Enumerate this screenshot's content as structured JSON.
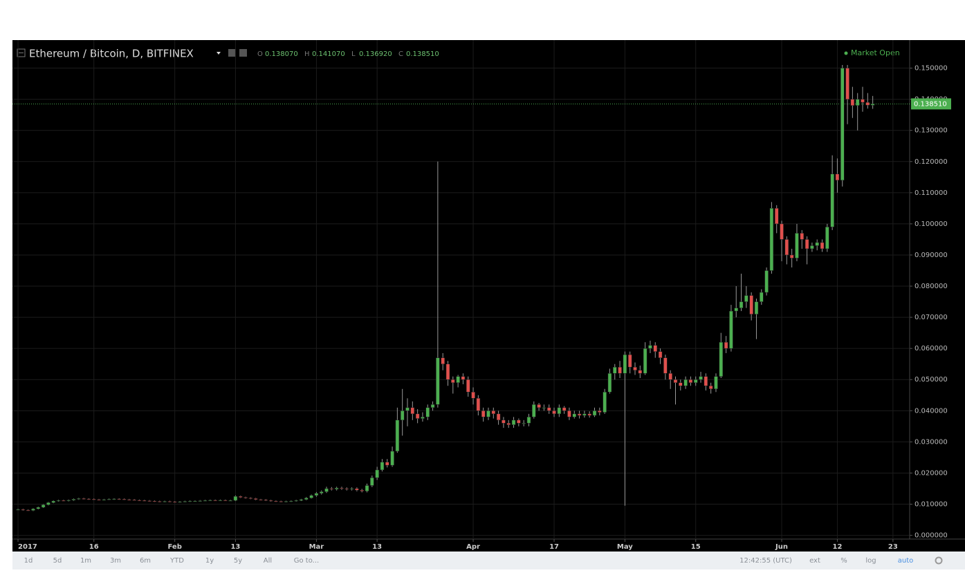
{
  "chart_data": {
    "type": "candlestick",
    "title": "Ethereum / Bitcoin, D, BITFINEX",
    "status": "Market Open",
    "header_values": [
      {
        "key": "O",
        "value": 0.13807,
        "label": "0.138070"
      },
      {
        "key": "H",
        "value": 0.14107,
        "label": "0.141070"
      },
      {
        "key": "L",
        "value": 0.13692,
        "label": "0.136920"
      },
      {
        "key": "C",
        "value": 0.13851,
        "label": "0.138510"
      }
    ],
    "last_price": {
      "value": 0.13851,
      "label": "0.138510"
    },
    "up_color": "#4caf50",
    "down_color": "#e0504d",
    "grid": true,
    "open": [
      0.0082,
      0.0083,
      0.0081,
      0.008,
      0.0085,
      0.009,
      0.0098,
      0.0105,
      0.011,
      0.0112,
      0.0111,
      0.0113,
      0.0116,
      0.0118,
      0.0117,
      0.0116,
      0.0115,
      0.0114,
      0.0115,
      0.0116,
      0.0117,
      0.0116,
      0.0115,
      0.0114,
      0.0113,
      0.0112,
      0.0111,
      0.011,
      0.0109,
      0.0108,
      0.0109,
      0.0108,
      0.0107,
      0.0108,
      0.0109,
      0.011,
      0.011,
      0.0111,
      0.0112,
      0.0113,
      0.0112,
      0.0113,
      0.0112,
      0.0112,
      0.0125,
      0.0122,
      0.012,
      0.0118,
      0.0115,
      0.0114,
      0.0112,
      0.011,
      0.0109,
      0.0108,
      0.0109,
      0.011,
      0.0112,
      0.0115,
      0.012,
      0.0128,
      0.0135,
      0.014,
      0.015,
      0.0148,
      0.0152,
      0.015,
      0.0148,
      0.015,
      0.0145,
      0.0142,
      0.016,
      0.0185,
      0.021,
      0.0235,
      0.0225,
      0.027,
      0.037,
      0.04,
      0.041,
      0.039,
      0.0375,
      0.038,
      0.041,
      0.042,
      0.057,
      0.055,
      0.05,
      0.049,
      0.051,
      0.05,
      0.046,
      0.044,
      0.04,
      0.038,
      0.04,
      0.039,
      0.037,
      0.036,
      0.0355,
      0.037,
      0.036,
      0.036,
      0.038,
      0.042,
      0.041,
      0.041,
      0.04,
      0.039,
      0.041,
      0.04,
      0.038,
      0.039,
      0.0385,
      0.039,
      0.0385,
      0.04,
      0.0395,
      0.046,
      0.052,
      0.054,
      0.052,
      0.058,
      0.054,
      0.053,
      0.052,
      0.06,
      0.061,
      0.059,
      0.057,
      0.052,
      0.05,
      0.049,
      0.048,
      0.05,
      0.049,
      0.05,
      0.051,
      0.048,
      0.047,
      0.051,
      0.062,
      0.06,
      0.072,
      0.073,
      0.075,
      0.077,
      0.071,
      0.075,
      0.078,
      0.085,
      0.105,
      0.1,
      0.095,
      0.09,
      0.089,
      0.097,
      0.095,
      0.092,
      0.093,
      0.094,
      0.092,
      0.099,
      0.116,
      0.114,
      0.15,
      0.14,
      0.138,
      0.14,
      0.139,
      0.13807
    ],
    "high": [
      0.0085,
      0.0085,
      0.0083,
      0.0087,
      0.0092,
      0.01,
      0.0107,
      0.0112,
      0.0114,
      0.0114,
      0.0115,
      0.0118,
      0.012,
      0.012,
      0.0119,
      0.0118,
      0.0117,
      0.0117,
      0.0118,
      0.0119,
      0.0119,
      0.0118,
      0.0117,
      0.0116,
      0.0115,
      0.0114,
      0.0113,
      0.0112,
      0.0111,
      0.0111,
      0.0111,
      0.011,
      0.011,
      0.0111,
      0.0112,
      0.0112,
      0.0113,
      0.0114,
      0.0115,
      0.0115,
      0.0115,
      0.0115,
      0.0114,
      0.0128,
      0.0127,
      0.0124,
      0.0122,
      0.012,
      0.0117,
      0.0116,
      0.0114,
      0.0112,
      0.0111,
      0.0111,
      0.0112,
      0.0114,
      0.0117,
      0.0123,
      0.0131,
      0.0139,
      0.0144,
      0.0156,
      0.0155,
      0.0156,
      0.0156,
      0.0154,
      0.0154,
      0.0154,
      0.0149,
      0.0166,
      0.0192,
      0.022,
      0.0245,
      0.0245,
      0.0285,
      0.041,
      0.047,
      0.044,
      0.043,
      0.0405,
      0.0395,
      0.042,
      0.043,
      0.12,
      0.0585,
      0.056,
      0.051,
      0.0515,
      0.052,
      0.051,
      0.0475,
      0.045,
      0.041,
      0.041,
      0.041,
      0.04,
      0.038,
      0.037,
      0.038,
      0.0375,
      0.037,
      0.039,
      0.043,
      0.0425,
      0.042,
      0.042,
      0.041,
      0.042,
      0.0415,
      0.041,
      0.04,
      0.04,
      0.04,
      0.0398,
      0.041,
      0.041,
      0.047,
      0.0535,
      0.055,
      0.056,
      0.059,
      0.059,
      0.0555,
      0.0545,
      0.062,
      0.0625,
      0.062,
      0.06,
      0.058,
      0.053,
      0.051,
      0.05,
      0.051,
      0.051,
      0.051,
      0.0525,
      0.052,
      0.049,
      0.052,
      0.065,
      0.064,
      0.074,
      0.08,
      0.084,
      0.08,
      0.078,
      0.076,
      0.079,
      0.086,
      0.107,
      0.106,
      0.101,
      0.096,
      0.092,
      0.1,
      0.098,
      0.096,
      0.094,
      0.095,
      0.095,
      0.1,
      0.122,
      0.121,
      0.151,
      0.151,
      0.144,
      0.142,
      0.144,
      0.142,
      0.14107
    ],
    "low": [
      0.008,
      0.0079,
      0.0078,
      0.0078,
      0.0083,
      0.0088,
      0.0096,
      0.0103,
      0.0108,
      0.0109,
      0.0109,
      0.0111,
      0.0114,
      0.0115,
      0.0114,
      0.0113,
      0.0112,
      0.0112,
      0.0113,
      0.0114,
      0.0114,
      0.0113,
      0.0112,
      0.0111,
      0.011,
      0.0109,
      0.0108,
      0.0107,
      0.0106,
      0.0106,
      0.0106,
      0.0105,
      0.0105,
      0.0106,
      0.0107,
      0.0108,
      0.0108,
      0.0109,
      0.011,
      0.011,
      0.011,
      0.011,
      0.011,
      0.011,
      0.012,
      0.0118,
      0.0116,
      0.0113,
      0.0112,
      0.011,
      0.0108,
      0.0107,
      0.0106,
      0.0106,
      0.0107,
      0.0108,
      0.011,
      0.0113,
      0.0118,
      0.0124,
      0.0131,
      0.0136,
      0.0144,
      0.0144,
      0.0146,
      0.0144,
      0.0144,
      0.0141,
      0.0138,
      0.0138,
      0.0155,
      0.0178,
      0.0205,
      0.0218,
      0.022,
      0.0265,
      0.032,
      0.035,
      0.037,
      0.036,
      0.0365,
      0.037,
      0.04,
      0.041,
      0.053,
      0.048,
      0.0455,
      0.0475,
      0.0485,
      0.0445,
      0.042,
      0.0385,
      0.0365,
      0.037,
      0.0375,
      0.0355,
      0.0345,
      0.0345,
      0.0345,
      0.035,
      0.035,
      0.035,
      0.0375,
      0.04,
      0.04,
      0.039,
      0.038,
      0.038,
      0.039,
      0.037,
      0.0375,
      0.0375,
      0.0378,
      0.0378,
      0.038,
      0.0385,
      0.039,
      0.0455,
      0.05,
      0.0505,
      0.0095,
      0.052,
      0.0515,
      0.0505,
      0.0515,
      0.0585,
      0.057,
      0.055,
      0.05,
      0.047,
      0.042,
      0.0465,
      0.047,
      0.048,
      0.048,
      0.049,
      0.0465,
      0.0455,
      0.046,
      0.0505,
      0.0585,
      0.059,
      0.07,
      0.072,
      0.073,
      0.069,
      0.063,
      0.074,
      0.077,
      0.084,
      0.097,
      0.088,
      0.087,
      0.086,
      0.088,
      0.092,
      0.087,
      0.091,
      0.0915,
      0.091,
      0.091,
      0.098,
      0.11,
      0.112,
      0.132,
      0.134,
      0.13,
      0.136,
      0.137,
      0.13692
    ],
    "close": [
      0.0083,
      0.0081,
      0.008,
      0.0085,
      0.009,
      0.0098,
      0.0105,
      0.011,
      0.0112,
      0.0111,
      0.0113,
      0.0116,
      0.0118,
      0.0117,
      0.0116,
      0.0115,
      0.0114,
      0.0115,
      0.0116,
      0.0117,
      0.0116,
      0.0115,
      0.0114,
      0.0113,
      0.0112,
      0.0111,
      0.011,
      0.0109,
      0.0108,
      0.0109,
      0.0108,
      0.0107,
      0.0108,
      0.0109,
      0.011,
      0.011,
      0.0111,
      0.0112,
      0.0113,
      0.0112,
      0.0113,
      0.0112,
      0.0112,
      0.0125,
      0.0122,
      0.012,
      0.0118,
      0.0115,
      0.0114,
      0.0112,
      0.011,
      0.0109,
      0.0108,
      0.0109,
      0.011,
      0.0112,
      0.0115,
      0.012,
      0.0128,
      0.0135,
      0.014,
      0.015,
      0.0148,
      0.0152,
      0.015,
      0.0148,
      0.015,
      0.0145,
      0.0142,
      0.016,
      0.0185,
      0.021,
      0.0235,
      0.0225,
      0.027,
      0.037,
      0.04,
      0.041,
      0.039,
      0.0375,
      0.038,
      0.041,
      0.042,
      0.057,
      0.055,
      0.05,
      0.049,
      0.051,
      0.05,
      0.046,
      0.044,
      0.04,
      0.038,
      0.04,
      0.039,
      0.037,
      0.036,
      0.0355,
      0.037,
      0.036,
      0.036,
      0.038,
      0.042,
      0.041,
      0.041,
      0.04,
      0.039,
      0.041,
      0.04,
      0.038,
      0.039,
      0.0385,
      0.039,
      0.0385,
      0.04,
      0.0395,
      0.046,
      0.052,
      0.054,
      0.052,
      0.058,
      0.054,
      0.053,
      0.052,
      0.06,
      0.061,
      0.059,
      0.057,
      0.052,
      0.05,
      0.049,
      0.048,
      0.05,
      0.049,
      0.05,
      0.051,
      0.048,
      0.047,
      0.051,
      0.062,
      0.06,
      0.072,
      0.073,
      0.075,
      0.077,
      0.071,
      0.075,
      0.078,
      0.085,
      0.105,
      0.1,
      0.095,
      0.09,
      0.089,
      0.097,
      0.095,
      0.092,
      0.093,
      0.094,
      0.092,
      0.099,
      0.116,
      0.114,
      0.15,
      0.14,
      0.138,
      0.14,
      0.139,
      0.1381,
      0.13851
    ],
    "xlim": [
      -1.1,
      176.3
    ],
    "xticks": [
      {
        "value": 0,
        "label": "2017"
      },
      {
        "value": 15,
        "label": "16"
      },
      {
        "value": 31,
        "label": "Feb"
      },
      {
        "value": 43,
        "label": "13"
      },
      {
        "value": 59,
        "label": "Mar"
      },
      {
        "value": 71,
        "label": "13"
      },
      {
        "value": 90,
        "label": "Apr"
      },
      {
        "value": 106,
        "label": "17"
      },
      {
        "value": 120,
        "label": "May"
      },
      {
        "value": 134,
        "label": "15"
      },
      {
        "value": 151,
        "label": "Jun"
      },
      {
        "value": 162,
        "label": "12"
      },
      {
        "value": 173,
        "label": "23"
      }
    ],
    "ylim": [
      -0.0012,
      0.159
    ],
    "yticks": [
      {
        "value": 0,
        "label": "0.000000"
      },
      {
        "value": 0.01,
        "label": "0.010000"
      },
      {
        "value": 0.02,
        "label": "0.020000"
      },
      {
        "value": 0.03,
        "label": "0.030000"
      },
      {
        "value": 0.04,
        "label": "0.040000"
      },
      {
        "value": 0.05,
        "label": "0.050000"
      },
      {
        "value": 0.06,
        "label": "0.060000"
      },
      {
        "value": 0.07,
        "label": "0.070000"
      },
      {
        "value": 0.08,
        "label": "0.080000"
      },
      {
        "value": 0.09,
        "label": "0.090000"
      },
      {
        "value": 0.1,
        "label": "0.100000"
      },
      {
        "value": 0.11,
        "label": "0.110000"
      },
      {
        "value": 0.12,
        "label": "0.120000"
      },
      {
        "value": 0.13,
        "label": "0.130000"
      },
      {
        "value": 0.14,
        "label": "0.140000"
      },
      {
        "value": 0.15,
        "label": "0.150000"
      }
    ]
  },
  "toolbar": {
    "left": [
      "1d",
      "5d",
      "1m",
      "3m",
      "6m",
      "YTD",
      "1y",
      "5y",
      "All",
      "Go to..."
    ],
    "right": [
      "12:42:55 (UTC)",
      "ext",
      "%",
      "log",
      "auto"
    ]
  }
}
